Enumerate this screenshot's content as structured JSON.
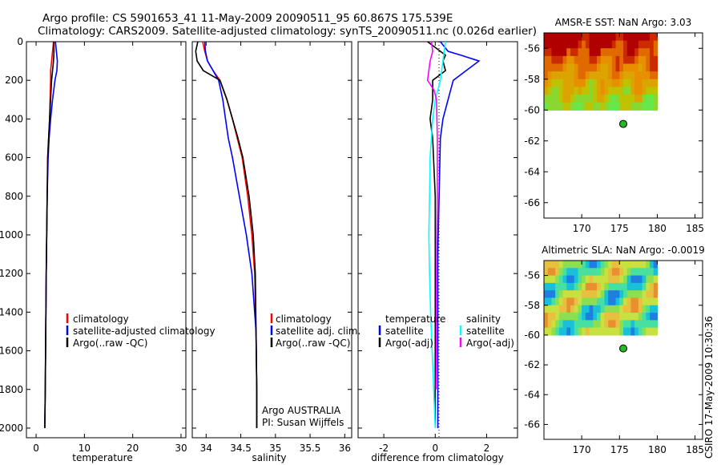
{
  "title_line1": "Argo profile: CS 5901653_41 11-May-2009 20090511_95 60.867S 175.539E",
  "title_line2": "Climatology: CARS2009. Satellite-adjusted climatology: synTS_20090511.nc (0.026d earlier)",
  "timestamp": "CSIRO 17-May-2009 10:30:36",
  "colors": {
    "climatology": "#ff0000",
    "satellite": "#0000ff",
    "argo": "#000000",
    "sat_salinity": "#00ffff",
    "argo_salinity": "#ff00ff"
  },
  "chart_data": [
    {
      "type": "line",
      "panel": "temperature",
      "xlabel": "temperature",
      "xlim": [
        -2,
        31
      ],
      "ylim": [
        0,
        2050
      ],
      "xticks": [
        "0",
        "10",
        "20",
        "30"
      ],
      "yticks": [
        "0",
        "200",
        "400",
        "600",
        "800",
        "1000",
        "1200",
        "1400",
        "1600",
        "1800",
        "2000"
      ],
      "legend": [
        "climatology",
        "satellite-adjusted climatology",
        "Argo(..raw -QC)"
      ],
      "series": [
        {
          "name": "climatology",
          "color": "#ff0000",
          "x": [
            3.6,
            3.4,
            3.2,
            3.0,
            3.0,
            2.9,
            2.8,
            2.6,
            2.4,
            2.3,
            2.2,
            2.1,
            2.0,
            1.9,
            1.8
          ],
          "y": [
            0,
            50,
            100,
            150,
            200,
            300,
            400,
            500,
            600,
            800,
            1000,
            1200,
            1500,
            1800,
            2000
          ]
        },
        {
          "name": "satellite-adjusted climatology",
          "color": "#0000ff",
          "x": [
            4.0,
            4.2,
            4.4,
            4.3,
            3.9,
            3.4,
            3.0,
            2.7,
            2.5,
            2.3,
            2.2,
            2.1,
            2.0,
            1.9,
            1.8
          ],
          "y": [
            0,
            50,
            100,
            150,
            200,
            300,
            400,
            500,
            600,
            800,
            1000,
            1200,
            1500,
            1800,
            2000
          ]
        },
        {
          "name": "Argo(..raw -QC)",
          "color": "#000000",
          "x": [
            3.7,
            3.7,
            3.6,
            3.4,
            3.2,
            3.0,
            2.8,
            2.6,
            2.4,
            2.3,
            2.2,
            2.1,
            2.0,
            1.9,
            1.8
          ],
          "y": [
            0,
            50,
            100,
            150,
            200,
            300,
            400,
            500,
            600,
            800,
            1000,
            1200,
            1500,
            1800,
            2000
          ]
        }
      ]
    },
    {
      "type": "line",
      "panel": "salinity",
      "xlabel": "salinity",
      "xlim": [
        33.8,
        36.1
      ],
      "ylim": [
        0,
        2050
      ],
      "xticks": [
        "34",
        "34.5",
        "35",
        "35.5",
        "36"
      ],
      "legend": [
        "climatology",
        "satellite adj. clim.",
        "Argo(..raw -QC)"
      ],
      "annotation": [
        "Argo AUSTRALIA",
        "PI: Susan Wijffels"
      ],
      "series": [
        {
          "name": "climatology",
          "color": "#ff0000",
          "x": [
            33.95,
            33.98,
            34.02,
            34.1,
            34.2,
            34.3,
            34.38,
            34.45,
            34.52,
            34.6,
            34.66,
            34.7,
            34.72,
            34.73,
            34.73
          ],
          "y": [
            0,
            50,
            100,
            150,
            200,
            300,
            400,
            500,
            600,
            800,
            1000,
            1200,
            1500,
            1800,
            2000
          ]
        },
        {
          "name": "satellite adj. clim.",
          "color": "#0000ff",
          "x": [
            33.98,
            33.99,
            34.02,
            34.1,
            34.18,
            34.24,
            34.28,
            34.32,
            34.38,
            34.48,
            34.58,
            34.66,
            34.72,
            34.73,
            34.73
          ],
          "y": [
            0,
            50,
            100,
            150,
            200,
            300,
            400,
            500,
            600,
            800,
            1000,
            1200,
            1500,
            1800,
            2000
          ]
        },
        {
          "name": "Argo(..raw -QC)",
          "color": "#000000",
          "x": [
            33.88,
            33.85,
            33.87,
            33.96,
            34.2,
            34.3,
            34.38,
            34.46,
            34.53,
            34.62,
            34.68,
            34.71,
            34.72,
            34.73,
            34.73
          ],
          "y": [
            0,
            50,
            100,
            150,
            200,
            300,
            400,
            500,
            600,
            800,
            1000,
            1200,
            1500,
            1800,
            2000
          ]
        }
      ]
    },
    {
      "type": "line",
      "panel": "difference",
      "xlabel": "difference from climatology",
      "xlim": [
        -3,
        3.2
      ],
      "ylim": [
        0,
        2050
      ],
      "xticks": [
        "-2",
        "0",
        "2"
      ],
      "legend": [
        {
          "group": "temperature",
          "items": [
            "satellite",
            "Argo(-adj)"
          ]
        },
        {
          "group": "salinity",
          "items": [
            "satellite",
            "Argo(-adj)"
          ]
        }
      ],
      "series": [
        {
          "name": "satellite",
          "group": "temperature",
          "color": "#0000ff",
          "x": [
            0.2,
            0.5,
            1.0,
            1.7,
            1.2,
            0.7,
            0.5,
            0.3,
            0.2,
            0.15,
            0.1,
            0.1,
            0.1,
            0.1,
            0.1
          ],
          "y": [
            0,
            50,
            70,
            100,
            150,
            200,
            300,
            400,
            500,
            800,
            1100,
            1400,
            1600,
            1800,
            2000
          ]
        },
        {
          "name": "Argo(-adj)",
          "group": "temperature",
          "color": "#000000",
          "x": [
            -0.3,
            0.2,
            0.4,
            0.3,
            0.4,
            -0.1,
            -0.1,
            -0.2,
            -0.1,
            0.0,
            0.0,
            0.0,
            0.0,
            0.0,
            0.0
          ],
          "y": [
            0,
            50,
            70,
            100,
            150,
            200,
            300,
            400,
            500,
            800,
            1100,
            1400,
            1600,
            1800,
            2000
          ]
        },
        {
          "name": "satellite",
          "group": "salinity",
          "color": "#00ffff",
          "x": [
            0.4,
            0.3,
            0.2,
            0.1,
            0.0,
            -0.1,
            -0.15,
            -0.2,
            -0.22,
            -0.25,
            -0.22,
            -0.18,
            -0.12,
            -0.06,
            0.0
          ],
          "y": [
            0,
            100,
            200,
            250,
            300,
            400,
            500,
            600,
            800,
            1000,
            1200,
            1400,
            1600,
            1800,
            2000
          ]
        },
        {
          "name": "Argo(-adj)",
          "group": "salinity",
          "color": "#ff00ff",
          "x": [
            -0.15,
            -0.1,
            -0.2,
            -0.3,
            -0.05,
            0.05,
            0.08,
            0.08,
            0.05,
            0.05,
            0.03
          ],
          "y": [
            0,
            50,
            100,
            200,
            250,
            300,
            500,
            800,
            1200,
            1500,
            1800
          ]
        }
      ]
    },
    {
      "type": "heatmap",
      "panel": "sst-map",
      "title": "AMSR-E SST: NaN Argo: 3.03",
      "xlim": [
        165,
        186
      ],
      "ylim": [
        -67,
        -55
      ],
      "xticks": [
        "170",
        "175",
        "180",
        "185"
      ],
      "yticks": [
        "-56",
        "-58",
        "-60",
        "-62",
        "-64",
        "-66"
      ],
      "grid_extent": {
        "lon": [
          165,
          180
        ],
        "lat": [
          -60,
          -55
        ]
      },
      "marker": {
        "lon": 175.5,
        "lat": -60.9,
        "color": "#22bb22"
      },
      "palette": [
        "#b00000",
        "#cc2a00",
        "#e06a00",
        "#e88f00",
        "#dba400",
        "#bfc200",
        "#8ad82f",
        "#66e84a"
      ]
    },
    {
      "type": "heatmap",
      "panel": "sla-map",
      "title": "Altimetric SLA: NaN Argo: -0.0019",
      "xlim": [
        165,
        186
      ],
      "ylim": [
        -67,
        -55
      ],
      "xticks": [
        "170",
        "175",
        "180",
        "185"
      ],
      "yticks": [
        "-56",
        "-58",
        "-60",
        "-62",
        "-64",
        "-66"
      ],
      "grid_extent": {
        "lon": [
          165,
          180
        ],
        "lat": [
          -60,
          -55
        ]
      },
      "marker": {
        "lon": 175.5,
        "lat": -60.9,
        "color": "#22bb22"
      },
      "palette": [
        "#1e7fe0",
        "#18c0d8",
        "#48e0a0",
        "#8ce050",
        "#c8e040",
        "#e8c040",
        "#e89030"
      ]
    }
  ]
}
